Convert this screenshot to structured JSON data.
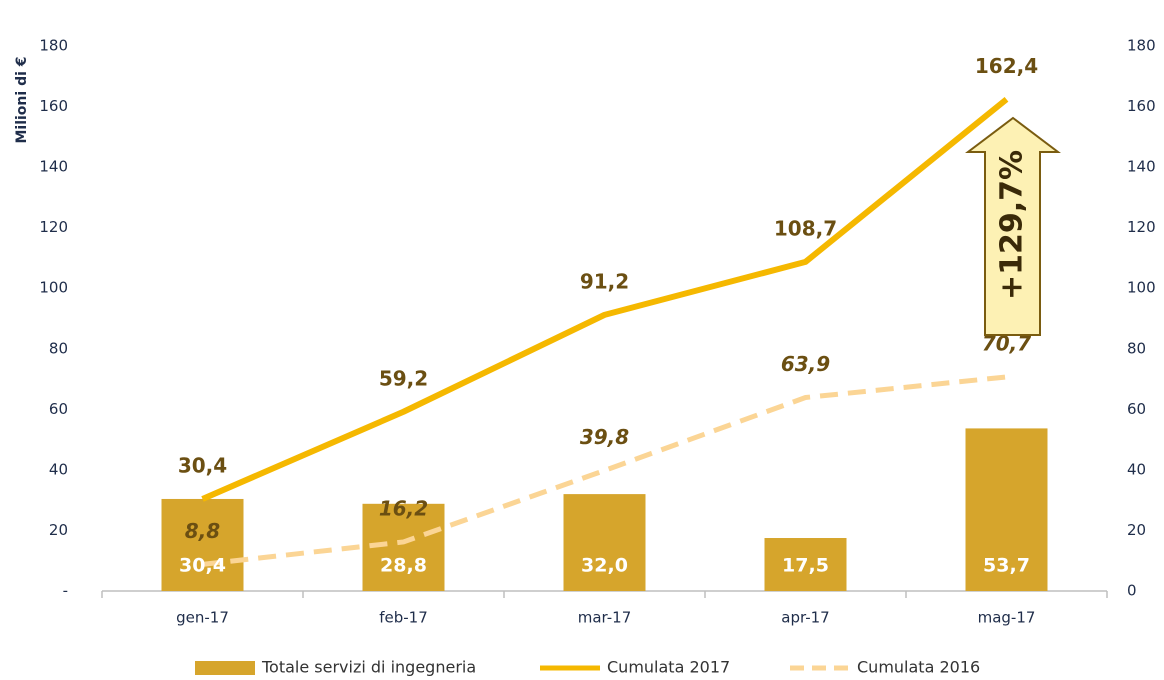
{
  "chart_data": {
    "type": "bar_line",
    "y_label": "Milioni di €",
    "categories": [
      "gen-17",
      "feb-17",
      "mar-17",
      "apr-17",
      "mag-17"
    ],
    "series": [
      {
        "name": "Totale servizi di ingegneria",
        "type": "bar",
        "color": "#d6a52c",
        "values": [
          30.4,
          28.8,
          32.0,
          17.5,
          53.7
        ],
        "value_labels": [
          "30,4",
          "28,8",
          "32,0",
          "17,5",
          "53,7"
        ]
      },
      {
        "name": "Cumulata 2017",
        "type": "line",
        "color": "#f5b800",
        "values": [
          30.4,
          59.2,
          91.2,
          108.7,
          162.4
        ],
        "value_labels": [
          "30,4",
          "59,2",
          "91,2",
          "108,7",
          "162,4"
        ]
      },
      {
        "name": "Cumulata 2016",
        "type": "line",
        "dashed": true,
        "color": "#fbd595",
        "values": [
          8.8,
          16.2,
          39.8,
          63.9,
          70.7
        ],
        "value_labels": [
          "8,8",
          "16,2",
          "39,8",
          "63,9",
          "70,7"
        ]
      }
    ],
    "ylim": [
      0,
      180
    ],
    "yticks": [
      {
        "value": 0,
        "label": "-"
      },
      20,
      40,
      60,
      80,
      100,
      120,
      140,
      160,
      180
    ],
    "y2lim": [
      0,
      180
    ],
    "y2ticks": [
      0,
      20,
      40,
      60,
      80,
      100,
      120,
      140,
      160,
      180
    ],
    "annotation": "+129,7%"
  }
}
